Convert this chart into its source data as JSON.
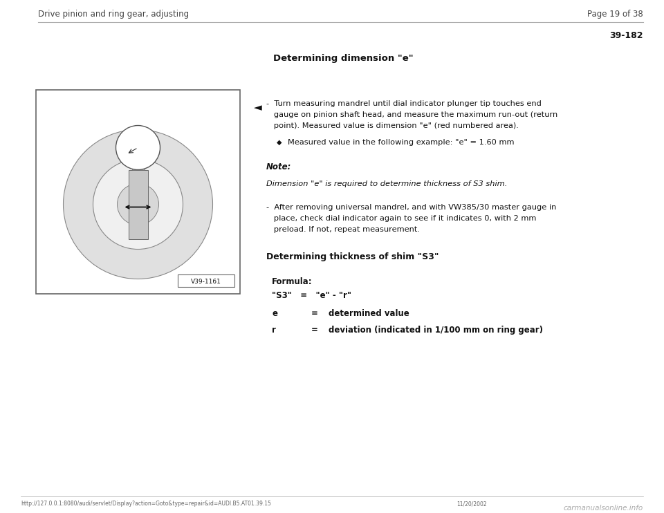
{
  "page_bg": "#ffffff",
  "header_left": "Drive pinion and ring gear, adjusting",
  "header_right": "Page 19 of 38",
  "section_number": "39-182",
  "title_bold": "Determining dimension \"e\"",
  "arrow_symbol": "◄",
  "bullet_diamond": "◆",
  "note_label": "Note:",
  "note_italic": "Dimension \"e\" is required to determine thickness of S3 shim.",
  "step1_line1": "-  Turn measuring mandrel until dial indicator plunger tip touches end",
  "step1_line2": "   gauge on pinion shaft head, and measure the maximum run-out (return",
  "step1_line3": "   point). Measured value is dimension \"e\" (red numbered area).",
  "step1_bullet": "Measured value in the following example: \"e\" = 1.60 mm",
  "step2_line1": "-  After removing universal mandrel, and with VW385/30 master gauge in",
  "step2_line2": "   place, check dial indicator again to see if it indicates 0, with 2 mm",
  "step2_line3": "   preload. If not, repeat measurement.",
  "section2_bold": "Determining thickness of shim \"S3\"",
  "formula_label": "Formula:",
  "formula_eq": "\"S3\"   =   \"e\" - \"r\"",
  "var_e_left": "e",
  "var_e_mid": "=",
  "var_e_right": "determined value",
  "var_r_left": "r",
  "var_r_mid": "=",
  "var_r_right": "deviation (indicated in 1/100 mm on ring gear)",
  "image_label": "V39-1161",
  "footer_url": "http://127.0.0.1:8080/audi/servlet/Display?action=Goto&type=repair&id=AUDI.B5.AT01.39.15",
  "footer_date": "11/20/2002",
  "watermark": "carmanualsonline.info",
  "sep_color": "#aaaaaa",
  "text_color": "#111111",
  "header_color": "#444444"
}
